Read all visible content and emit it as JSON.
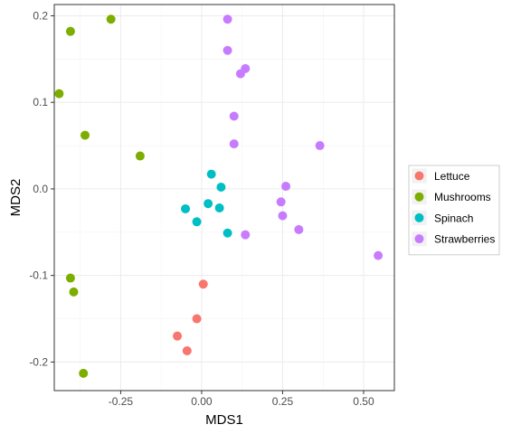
{
  "chart_data": {
    "type": "scatter",
    "title": "",
    "xlabel": "MDS1",
    "ylabel": "MDS2",
    "xlim": [
      -0.455,
      0.595
    ],
    "ylim": [
      -0.233,
      0.213
    ],
    "xticks": [
      -0.25,
      0.0,
      0.25,
      0.5
    ],
    "xtick_labels": [
      "-0.25",
      "0.00",
      "0.25",
      "0.50"
    ],
    "yticks": [
      -0.2,
      -0.1,
      0.0,
      0.1,
      0.2
    ],
    "ytick_labels": [
      "-0.2",
      "-0.1",
      "0.0",
      "0.1",
      "0.2"
    ],
    "grid": true,
    "legend_position": "right",
    "series": [
      {
        "name": "Lettuce",
        "color": "#F8766D",
        "points": [
          [
            0.005,
            -0.11
          ],
          [
            -0.015,
            -0.15
          ],
          [
            -0.075,
            -0.17
          ],
          [
            -0.045,
            -0.187
          ]
        ]
      },
      {
        "name": "Mushrooms",
        "color": "#7CAE00",
        "points": [
          [
            -0.28,
            0.196
          ],
          [
            -0.405,
            0.182
          ],
          [
            -0.44,
            0.11
          ],
          [
            -0.36,
            0.062
          ],
          [
            -0.19,
            0.038
          ],
          [
            -0.405,
            -0.103
          ],
          [
            -0.395,
            -0.119
          ],
          [
            -0.365,
            -0.213
          ]
        ]
      },
      {
        "name": "Spinach",
        "color": "#00BFC4",
        "points": [
          [
            0.03,
            0.017
          ],
          [
            0.06,
            0.002
          ],
          [
            0.02,
            -0.017
          ],
          [
            -0.05,
            -0.023
          ],
          [
            0.055,
            -0.022
          ],
          [
            -0.015,
            -0.038
          ],
          [
            0.08,
            -0.051
          ]
        ]
      },
      {
        "name": "Strawberries",
        "color": "#C77CFF",
        "points": [
          [
            0.08,
            0.196
          ],
          [
            0.08,
            0.16
          ],
          [
            0.135,
            0.139
          ],
          [
            0.12,
            0.133
          ],
          [
            0.1,
            0.084
          ],
          [
            0.1,
            0.052
          ],
          [
            0.365,
            0.05
          ],
          [
            0.26,
            0.003
          ],
          [
            0.245,
            -0.015
          ],
          [
            0.25,
            -0.031
          ],
          [
            0.3,
            -0.047
          ],
          [
            0.135,
            -0.053
          ],
          [
            0.545,
            -0.077
          ]
        ]
      }
    ]
  }
}
